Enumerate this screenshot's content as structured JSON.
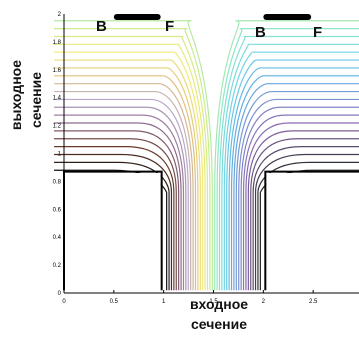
{
  "y_axis_label": [
    "выходное",
    "сечение"
  ],
  "x_axis_label": [
    "входное",
    "сечение"
  ],
  "point_labels": [
    {
      "text": "B",
      "x": 0.4,
      "y": 1.9
    },
    {
      "text": "F",
      "x": 1.1,
      "y": 1.9
    },
    {
      "text": "B",
      "x": 2.0,
      "y": 1.9
    },
    {
      "text": "F",
      "x": 2.55,
      "y": 1.9
    }
  ],
  "x_ticks": [
    "0",
    "0.5",
    "1",
    "1.5",
    "2",
    "2.5",
    "3"
  ],
  "y_ticks": [
    "0",
    "0.2",
    "0.4",
    "0.6",
    "0.8",
    "1",
    "1.2",
    "1.4",
    "1.6",
    "1.8",
    "2"
  ],
  "colors": {
    "wall": "#000000",
    "bar": "#000000",
    "streamline_palette": [
      "#111111",
      "#6b3b2a",
      "#8e6a8c",
      "#b9a9c9",
      "#e0c07a",
      "#f2ea76",
      "#c9ec8f",
      "#8fe6c8",
      "#70d5e6",
      "#5fb0e0",
      "#7f8fd0",
      "#8a6ab0",
      "#5a4a6a",
      "#222222"
    ]
  },
  "chart_data": {
    "type": "diagram",
    "x_range": [
      0,
      3
    ],
    "y_range": [
      0,
      2
    ]
  }
}
